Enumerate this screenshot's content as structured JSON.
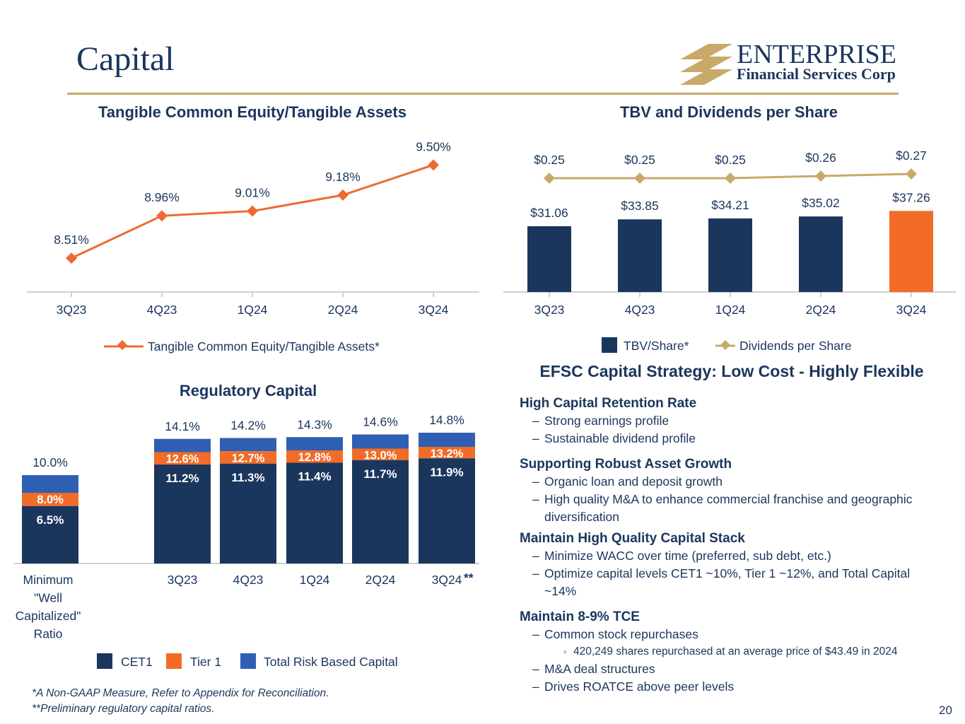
{
  "page": {
    "title": "Capital",
    "page_number": "20",
    "footnotes": [
      "*A Non-GAAP Measure, Refer to Appendix for Reconciliation.",
      "**Preliminary regulatory capital ratios."
    ]
  },
  "logo": {
    "name": "ENTERPRISE",
    "subtitle": "Financial Services Corp",
    "mark_icon": "stacked-gold-bars-logo",
    "colors": {
      "navy": "#1b365d",
      "gold": "#c9a96a"
    }
  },
  "strategy": {
    "title": "EFSC Capital Strategy: Low Cost - Highly Flexible",
    "sections": [
      {
        "title": "High Capital Retention Rate",
        "bullets": [
          "Strong earnings profile",
          "Sustainable dividend profile"
        ]
      },
      {
        "title": "Supporting Robust Asset Growth",
        "bullets": [
          "Organic loan and deposit growth",
          "High quality M&A to enhance commercial franchise and geographic diversification"
        ]
      },
      {
        "title": "Maintain High Quality Capital Stack",
        "bullets": [
          "Minimize WACC over time (preferred, sub debt, etc.)",
          "Optimize capital levels CET1 ~10%, Tier 1 ~12%, and Total Capital ~14%"
        ]
      },
      {
        "title": "Maintain 8-9% TCE",
        "bullets": [
          "Common stock repurchases",
          "M&A deal structures",
          "Drives ROATCE above peer levels"
        ],
        "sub_bullet": "420,249 shares repurchased at an average price of $43.49 in 2024"
      }
    ]
  },
  "chart_data": [
    {
      "type": "line",
      "title": "Tangible Common Equity/Tangible Assets",
      "categories": [
        "3Q23",
        "4Q23",
        "1Q24",
        "2Q24",
        "3Q24"
      ],
      "series": [
        {
          "name": "Tangible Common Equity/Tangible Assets*",
          "values": [
            8.51,
            8.96,
            9.01,
            9.18,
            9.5
          ],
          "labels": [
            "8.51%",
            "8.96%",
            "9.01%",
            "9.18%",
            "9.50%"
          ],
          "color": "#ed6b33",
          "marker": "diamond"
        }
      ],
      "legend": "bottom",
      "grid": false
    },
    {
      "type": "bar",
      "title": "TBV and Dividends per Share",
      "categories": [
        "3Q23",
        "4Q23",
        "1Q24",
        "2Q24",
        "3Q24"
      ],
      "series": [
        {
          "name": "TBV/Share*",
          "type": "bar",
          "values": [
            31.06,
            33.85,
            34.21,
            35.02,
            37.26
          ],
          "labels": [
            "$31.06",
            "$33.85",
            "$34.21",
            "$35.02",
            "$37.26"
          ],
          "color": "#1b365d",
          "highlight_color": "#f26c27"
        },
        {
          "name": "Dividends per Share",
          "type": "line",
          "values": [
            0.25,
            0.25,
            0.25,
            0.26,
            0.27
          ],
          "labels": [
            "$0.25",
            "$0.25",
            "$0.25",
            "$0.26",
            "$0.27"
          ],
          "color": "#c9a96a",
          "marker": "diamond"
        }
      ],
      "legend": "bottom",
      "grid": false
    },
    {
      "type": "bar",
      "stacked": true,
      "title": "Regulatory Capital",
      "categories": [
        "Minimum \"Well Capitalized\" Ratio",
        "3Q23",
        "4Q23",
        "1Q24",
        "2Q24",
        "3Q24"
      ],
      "category_note": "**",
      "series": [
        {
          "name": "CET1",
          "values": [
            6.5,
            11.2,
            11.3,
            11.4,
            11.7,
            11.9
          ],
          "labels": [
            "6.5%",
            "11.2%",
            "11.3%",
            "11.4%",
            "11.7%",
            "11.9%"
          ],
          "color": "#1b365d"
        },
        {
          "name": "Tier 1",
          "values": [
            8.0,
            12.6,
            12.7,
            12.8,
            13.0,
            13.2
          ],
          "labels": [
            "8.0%",
            "12.6%",
            "12.7%",
            "12.8%",
            "13.0%",
            "13.2%"
          ],
          "color": "#f26c27"
        },
        {
          "name": "Total Risk Based Capital",
          "values": [
            10.0,
            14.1,
            14.2,
            14.3,
            14.6,
            14.8
          ],
          "labels": [
            "10.0%",
            "14.1%",
            "14.2%",
            "14.3%",
            "14.6%",
            "14.8%"
          ],
          "color": "#2f5fb3"
        }
      ],
      "legend": "bottom",
      "grid": false
    }
  ]
}
